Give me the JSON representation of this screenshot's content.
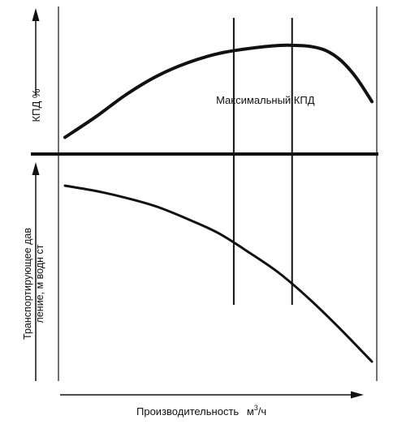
{
  "chart_data": {
    "type": "line",
    "panels": [
      {
        "id": "efficiency",
        "ylabel": "КПД %",
        "series": [
          {
            "x": [
              0.0,
              0.1,
              0.2,
              0.3,
              0.4,
              0.5,
              0.6,
              0.7,
              0.75,
              0.8,
              0.85,
              0.9,
              0.95,
              1.0
            ],
            "y": [
              0.1,
              0.3,
              0.52,
              0.7,
              0.83,
              0.92,
              0.97,
              1.0,
              1.0,
              0.99,
              0.95,
              0.85,
              0.68,
              0.45
            ]
          }
        ]
      },
      {
        "id": "head",
        "ylabel": "Транспортирующее дав ление, м водн ст",
        "series": [
          {
            "x": [
              0.0,
              0.1,
              0.2,
              0.3,
              0.4,
              0.5,
              0.6,
              0.7,
              0.8,
              0.9,
              1.0
            ],
            "y": [
              1.0,
              0.97,
              0.93,
              0.88,
              0.81,
              0.73,
              0.62,
              0.5,
              0.35,
              0.18,
              0.0
            ]
          }
        ]
      }
    ],
    "annotations": [
      {
        "text": "Максимальный КПД",
        "x_range": [
          0.55,
          0.74
        ]
      }
    ],
    "xlabel": "Производительность",
    "xunit": {
      "base": "м",
      "sup": "3",
      "rest": "/ч"
    },
    "grid": false,
    "legend": "none"
  },
  "icons": [
    "arrow-up-icon",
    "arrow-right-icon"
  ],
  "colors": {
    "ink": "#111111",
    "background": "#ffffff"
  }
}
